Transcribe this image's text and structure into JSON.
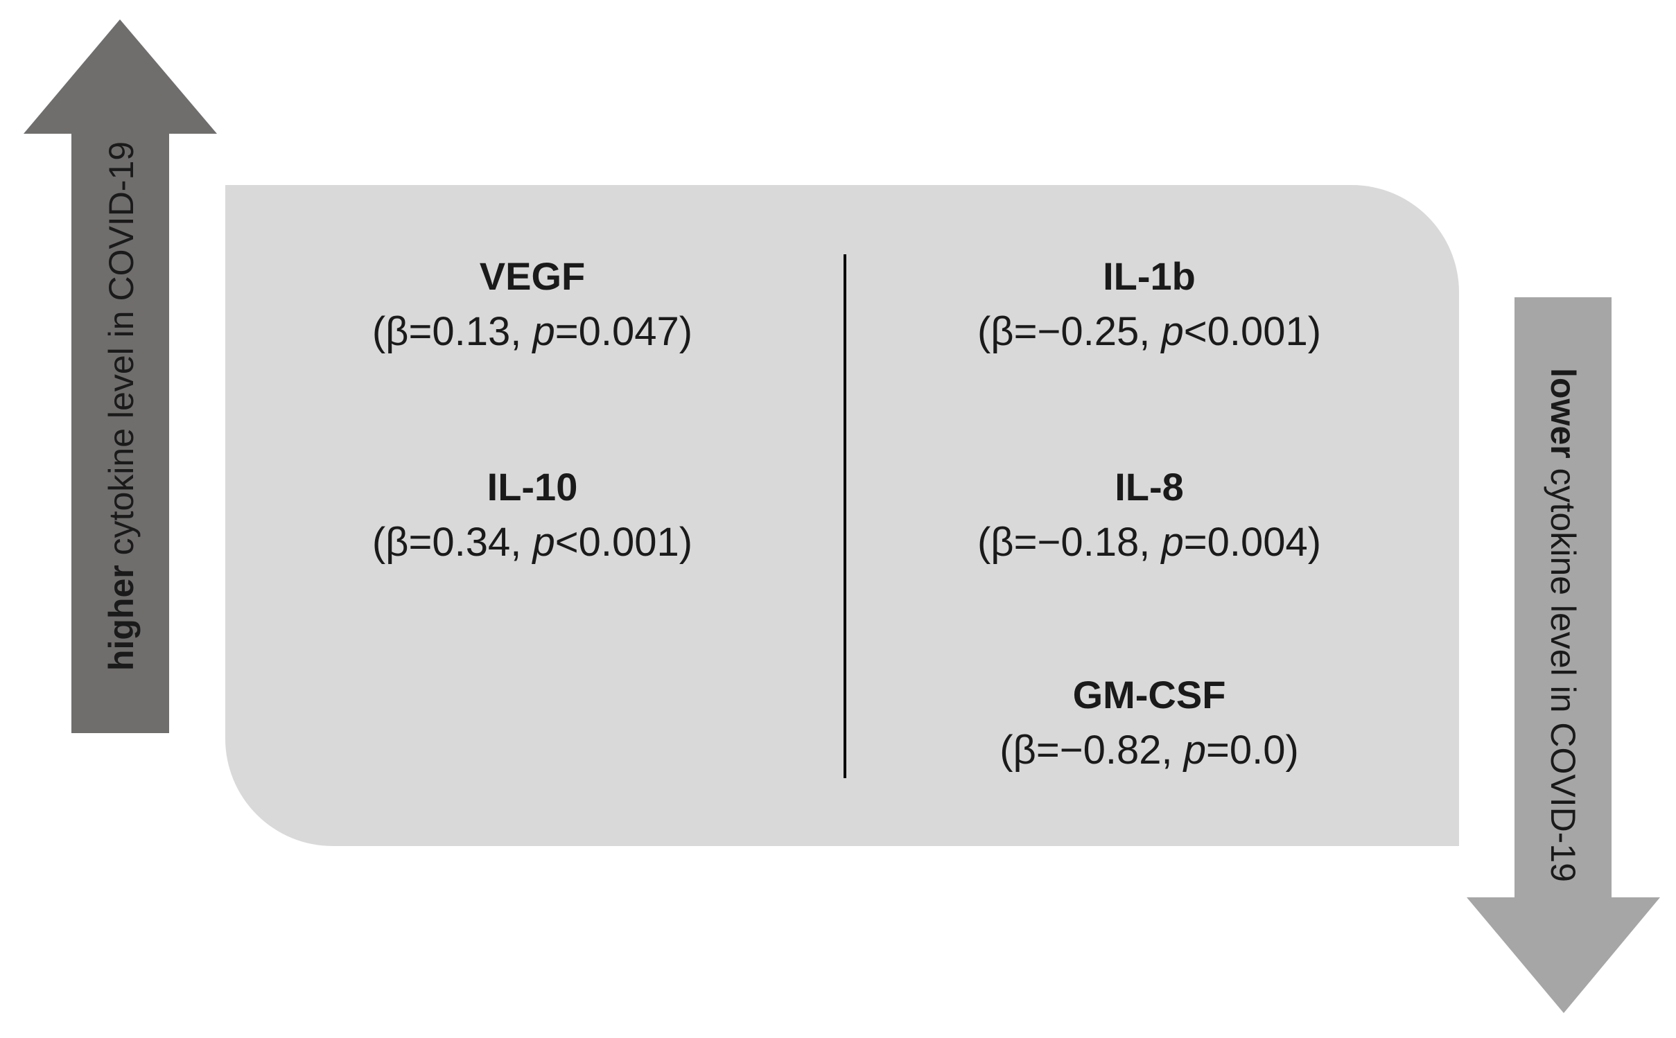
{
  "arrows": {
    "up": {
      "bold": "higher",
      "rest": " cytokine level in COVID-19"
    },
    "down": {
      "bold": "lower",
      "rest": " cytokine level in COVID-19"
    }
  },
  "columns": [
    [
      {
        "name": "VEGF",
        "before": "(β=0.13, ",
        "italic": "p",
        "after": "=0.047)"
      },
      {
        "name": "IL-10",
        "before": "(β=0.34, ",
        "italic": "p",
        "after": "<0.001)"
      }
    ],
    [
      {
        "name": "IL-1b",
        "before": "(β=−0.25, ",
        "italic": "p",
        "after": "<0.001)"
      },
      {
        "name": "IL-8",
        "before": "(β=−0.18, ",
        "italic": "p",
        "after": "=0.004)"
      },
      {
        "name": "GM-CSF",
        "before": "(β=−0.82, ",
        "italic": "p",
        "after": "=0.0)"
      }
    ]
  ]
}
